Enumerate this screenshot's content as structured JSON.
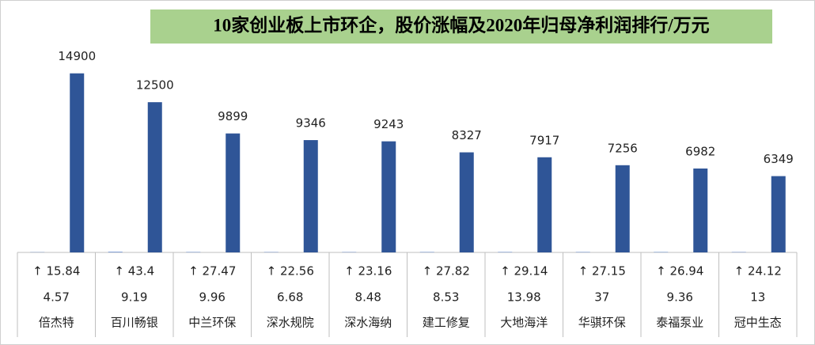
{
  "chart_data": {
    "type": "bar",
    "title": "10家创业板上市环企，股价涨幅及2020年归母净利润排行/万元",
    "categories": [
      "倍杰特",
      "百川畅银",
      "中兰环保",
      "深水规院",
      "深水海纳",
      "建工修复",
      "大地海洋",
      "华骐环保",
      "泰福泵业",
      "冠中生态"
    ],
    "series": [
      {
        "color": "#4472c4",
        "values": [
          15.84,
          43.4,
          27.47,
          22.56,
          23.16,
          27.82,
          29.14,
          27.15,
          26.94,
          24.12
        ],
        "value_labels": [
          "↑ 15.84",
          "↑ 43.4",
          "↑ 27.47",
          "↑ 22.56",
          "↑ 23.16",
          "↑ 27.82",
          "↑ 29.14",
          "↑ 27.15",
          "↑ 26.94",
          "↑ 24.12"
        ]
      },
      {
        "values": [
          4.57,
          9.19,
          9.96,
          6.68,
          8.48,
          8.53,
          13.98,
          37,
          9.36,
          13
        ]
      },
      {
        "color": "#2f5597",
        "values": [
          14900,
          12500,
          9899,
          9346,
          9243,
          8327,
          7917,
          7256,
          6982,
          6349
        ]
      }
    ],
    "ylim": [
      0,
      16000
    ]
  }
}
